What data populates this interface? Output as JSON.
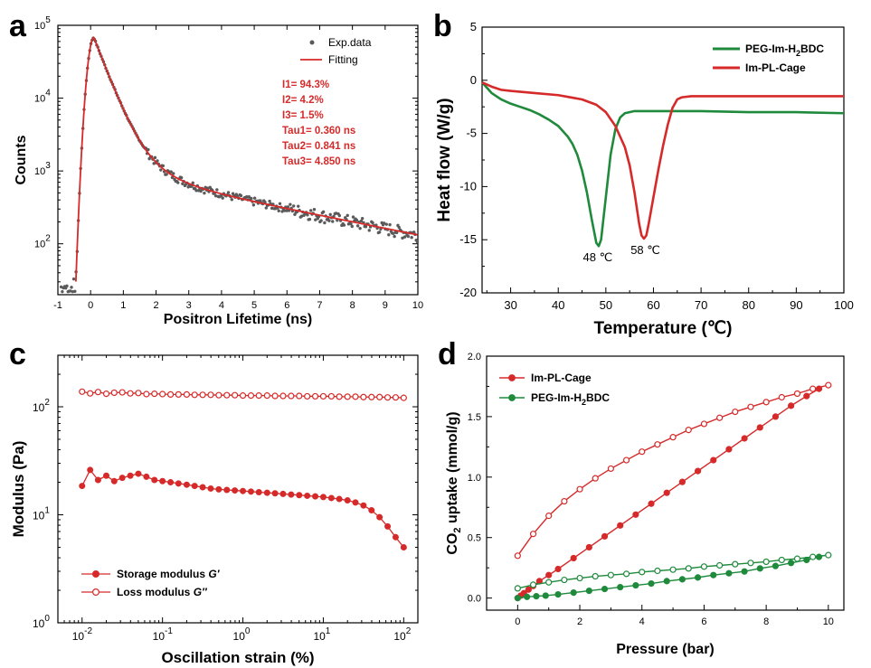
{
  "colors": {
    "red": "#d62a2a",
    "green": "#1f8a3c",
    "gray": "#5a5a5a",
    "axis": "#000000"
  },
  "chart_data": [
    {
      "panel": "a",
      "type": "scatter",
      "xlabel": "Positron Lifetime (ns)",
      "ylabel": "Counts",
      "xlim": [
        -1,
        10
      ],
      "ylim": [
        20,
        100000
      ],
      "yscale": "log",
      "xticks": [
        "-1",
        "0",
        "1",
        "2",
        "3",
        "4",
        "5",
        "6",
        "7",
        "8",
        "9",
        "10"
      ],
      "yticks": [
        {
          "v": 100,
          "b": "10",
          "e": "2"
        },
        {
          "v": 1000,
          "b": "10",
          "e": "3"
        },
        {
          "v": 10000,
          "b": "10",
          "e": "4"
        },
        {
          "v": 100000,
          "b": "10",
          "e": "5"
        }
      ],
      "legend": [
        {
          "name": "Exp.data",
          "kind": "dot"
        },
        {
          "name": "Fitting",
          "kind": "line"
        }
      ],
      "annotations": [
        "I1= 94.3%",
        "I2= 4.2%",
        "I3= 1.5%",
        "Tau1= 0.360 ns",
        "Tau2= 0.841 ns",
        "Tau3= 4.850 ns"
      ],
      "fit": {
        "I1": 94.3,
        "I2": 4.2,
        "I3": 1.5,
        "tau1": 0.36,
        "tau2": 0.841,
        "tau3": 4.85,
        "peak_x": 0.1,
        "peak_y": 68000
      }
    },
    {
      "panel": "b",
      "type": "line",
      "xlabel": "Temperature (℃)",
      "ylabel": "Heat flow (W/g)",
      "xlim": [
        24,
        100
      ],
      "ylim": [
        -20,
        5
      ],
      "xticks": [
        30,
        40,
        50,
        60,
        70,
        80,
        90,
        100
      ],
      "yticks": [
        5,
        0,
        -5,
        -10,
        -15,
        -20
      ],
      "legend": [
        "PEG-Im-H",
        "2",
        "BDC",
        "Im-PL-Cage"
      ],
      "peak_labels": [
        "48 ℃",
        "58 ℃"
      ],
      "series": [
        {
          "name": "PEG-Im-H2BDC",
          "color": "green",
          "x": [
            24,
            26,
            28,
            30,
            32,
            34,
            36,
            38,
            40,
            42,
            43,
            44,
            45,
            46,
            47,
            48,
            48.5,
            49,
            50,
            51,
            52,
            53,
            54,
            56,
            58,
            60,
            65,
            70,
            80,
            90,
            100
          ],
          "y": [
            -0.2,
            -1.2,
            -1.8,
            -2.2,
            -2.5,
            -2.8,
            -3.2,
            -3.7,
            -4.3,
            -5.3,
            -6.0,
            -7.0,
            -8.5,
            -10.5,
            -13.0,
            -15.3,
            -15.6,
            -15.0,
            -11.0,
            -7.0,
            -4.6,
            -3.5,
            -3.1,
            -2.9,
            -2.9,
            -2.9,
            -2.9,
            -2.9,
            -3.0,
            -3.0,
            -3.1
          ]
        },
        {
          "name": "Im-PL-Cage",
          "color": "red",
          "x": [
            24,
            26,
            28,
            30,
            35,
            40,
            45,
            48,
            50,
            52,
            54,
            55,
            56,
            57,
            57.5,
            58,
            58.5,
            59,
            60,
            61,
            62,
            63,
            64,
            65,
            66,
            68,
            70,
            80,
            90,
            100
          ],
          "y": [
            -0.2,
            -0.6,
            -0.9,
            -1.0,
            -1.2,
            -1.4,
            -1.8,
            -2.3,
            -3.0,
            -4.3,
            -6.3,
            -8.0,
            -10.5,
            -13.5,
            -14.6,
            -14.9,
            -14.6,
            -13.5,
            -11.0,
            -8.5,
            -6.2,
            -4.2,
            -2.6,
            -1.8,
            -1.6,
            -1.5,
            -1.5,
            -1.5,
            -1.5,
            -1.5
          ]
        }
      ]
    },
    {
      "panel": "c",
      "type": "scatter",
      "xlabel": "Oscillation strain (%)",
      "ylabel": "Modulus (Pa)",
      "xscale": "log",
      "yscale": "log",
      "xlim": [
        0.005,
        150
      ],
      "ylim": [
        1,
        300
      ],
      "xticks": [
        {
          "v": 0.01,
          "b": "10",
          "e": "-2"
        },
        {
          "v": 0.1,
          "b": "10",
          "e": "-1"
        },
        {
          "v": 1,
          "b": "10",
          "e": "0"
        },
        {
          "v": 10,
          "b": "10",
          "e": "1"
        },
        {
          "v": 100,
          "b": "10",
          "e": "2"
        }
      ],
      "yticks": [
        {
          "v": 1,
          "b": "10",
          "e": "0"
        },
        {
          "v": 10,
          "b": "10",
          "e": "1"
        },
        {
          "v": 100,
          "b": "10",
          "e": "2"
        }
      ],
      "legend": [
        {
          "prefix": "Storage modulus ",
          "sym": "G′",
          "filled": true
        },
        {
          "prefix": "Loss modulus ",
          "sym": "G″",
          "filled": false
        }
      ],
      "storage": {
        "x": [
          0.01,
          0.0126,
          0.0158,
          0.02,
          0.0251,
          0.0316,
          0.0398,
          0.0501,
          0.0631,
          0.0794,
          0.1,
          0.126,
          0.158,
          0.2,
          0.251,
          0.316,
          0.398,
          0.501,
          0.631,
          0.794,
          1,
          1.26,
          1.58,
          2,
          2.51,
          3.16,
          3.98,
          5.01,
          6.31,
          7.94,
          10,
          12.6,
          15.8,
          20,
          25.1,
          31.6,
          39.8,
          50.1,
          63.1,
          79.4,
          100
        ],
        "y": [
          18.5,
          26,
          21,
          23,
          20.5,
          22,
          23,
          24,
          22.5,
          21,
          20.5,
          20,
          19.5,
          19,
          18.5,
          18,
          17.5,
          17.2,
          17,
          16.8,
          16.6,
          16.4,
          16.2,
          16,
          15.8,
          15.6,
          15.4,
          15.2,
          15,
          14.8,
          14.6,
          14.3,
          14,
          13.6,
          13,
          12.2,
          11,
          9.5,
          7.8,
          6.2,
          5
        ]
      },
      "loss": {
        "x": [
          0.01,
          0.0126,
          0.0158,
          0.02,
          0.0251,
          0.0316,
          0.0398,
          0.0501,
          0.0631,
          0.0794,
          0.1,
          0.126,
          0.158,
          0.2,
          0.251,
          0.316,
          0.398,
          0.501,
          0.631,
          0.794,
          1,
          1.26,
          1.58,
          2,
          2.51,
          3.16,
          3.98,
          5.01,
          6.31,
          7.94,
          10,
          12.6,
          15.8,
          20,
          25.1,
          31.6,
          39.8,
          50.1,
          63.1,
          79.4,
          100
        ],
        "y": [
          138,
          133,
          137,
          132,
          135,
          136,
          133,
          134,
          131,
          132,
          131,
          130,
          130,
          130,
          129,
          129,
          129,
          128,
          128,
          128,
          127,
          127,
          127,
          127,
          126,
          126,
          126,
          126,
          125,
          125,
          125,
          125,
          124,
          124,
          124,
          123,
          123,
          123,
          122,
          122,
          121
        ]
      }
    },
    {
      "panel": "d",
      "type": "line",
      "xlabel": "Pressure (bar)",
      "ylabel_parts": [
        "CO",
        "2",
        " uptake (mmol/g)"
      ],
      "xlim": [
        -1,
        10.5
      ],
      "ylim": [
        -0.1,
        2.0
      ],
      "xticks": [
        0,
        2,
        4,
        6,
        8,
        10
      ],
      "yticks": [
        "0.0",
        "0.5",
        "1.0",
        "1.5",
        "2.0"
      ],
      "legend": [
        "Im-PL-Cage",
        "PEG-Im-H",
        "2",
        "BDC"
      ],
      "series": [
        {
          "name": "Im-PL-Cage adsorption",
          "color": "red",
          "filled": true,
          "x": [
            0,
            0.1,
            0.2,
            0.35,
            0.5,
            0.7,
            1.0,
            1.3,
            1.8,
            2.3,
            2.8,
            3.3,
            3.8,
            4.3,
            4.8,
            5.3,
            5.8,
            6.3,
            6.8,
            7.3,
            7.8,
            8.3,
            8.8,
            9.3,
            9.7
          ],
          "y": [
            0.0,
            0.02,
            0.04,
            0.07,
            0.1,
            0.14,
            0.19,
            0.24,
            0.33,
            0.42,
            0.51,
            0.6,
            0.69,
            0.78,
            0.87,
            0.96,
            1.05,
            1.14,
            1.23,
            1.32,
            1.41,
            1.5,
            1.59,
            1.67,
            1.73
          ]
        },
        {
          "name": "Im-PL-Cage desorption",
          "color": "red",
          "filled": false,
          "x": [
            0,
            0.5,
            1.0,
            1.5,
            2.0,
            2.5,
            3.0,
            3.5,
            4.0,
            4.5,
            5.0,
            5.5,
            6.0,
            6.5,
            7.0,
            7.5,
            8.0,
            8.5,
            9.0,
            9.5,
            10.0
          ],
          "y": [
            0.35,
            0.53,
            0.68,
            0.8,
            0.9,
            0.99,
            1.07,
            1.14,
            1.21,
            1.27,
            1.33,
            1.39,
            1.44,
            1.49,
            1.54,
            1.58,
            1.62,
            1.66,
            1.69,
            1.73,
            1.76
          ]
        },
        {
          "name": "PEG-Im-H2BDC adsorption",
          "color": "green",
          "filled": true,
          "x": [
            0,
            0.3,
            0.6,
            0.9,
            1.3,
            1.8,
            2.3,
            2.8,
            3.3,
            3.8,
            4.3,
            4.8,
            5.3,
            5.8,
            6.3,
            6.8,
            7.3,
            7.8,
            8.3,
            8.8,
            9.3,
            9.7
          ],
          "y": [
            0.0,
            0.01,
            0.015,
            0.02,
            0.03,
            0.045,
            0.06,
            0.075,
            0.09,
            0.105,
            0.12,
            0.14,
            0.155,
            0.17,
            0.19,
            0.205,
            0.22,
            0.245,
            0.265,
            0.29,
            0.315,
            0.34
          ]
        },
        {
          "name": "PEG-Im-H2BDC desorption",
          "color": "green",
          "filled": false,
          "x": [
            0,
            0.5,
            1.0,
            1.5,
            2.0,
            2.5,
            3.0,
            3.5,
            4.0,
            4.5,
            5.0,
            5.5,
            6.0,
            6.5,
            7.0,
            7.5,
            8.0,
            8.5,
            9.0,
            9.5,
            10.0
          ],
          "y": [
            0.08,
            0.11,
            0.13,
            0.15,
            0.165,
            0.18,
            0.19,
            0.2,
            0.215,
            0.225,
            0.235,
            0.245,
            0.26,
            0.27,
            0.28,
            0.29,
            0.3,
            0.315,
            0.325,
            0.34,
            0.355
          ]
        }
      ]
    }
  ]
}
